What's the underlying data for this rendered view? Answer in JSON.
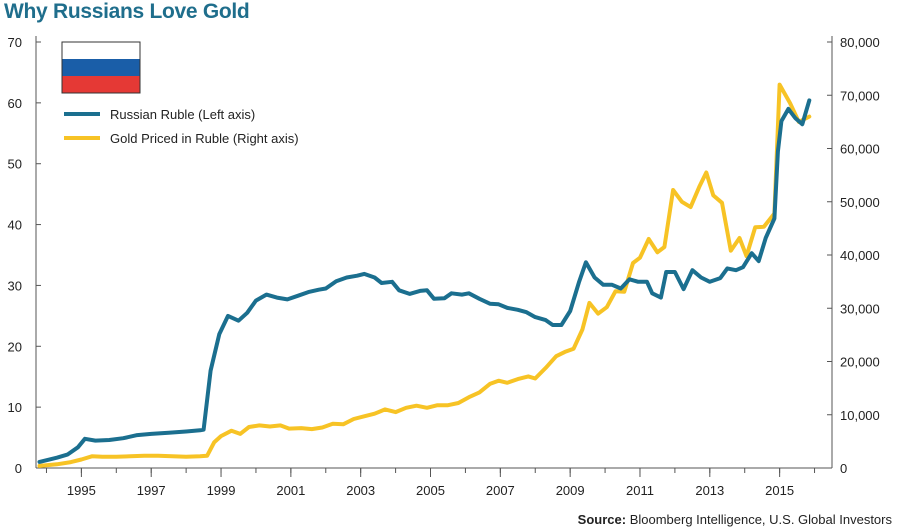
{
  "title": "Why Russians Love Gold",
  "source": {
    "label": "Source:",
    "text": "Bloomberg Intelligence, U.S. Global Investors"
  },
  "flag": {
    "name": "russian-flag",
    "stripes": [
      "#ffffff",
      "#1a5ea8",
      "#e53935"
    ]
  },
  "chart_data": {
    "type": "line",
    "title": "Why Russians Love Gold",
    "grid": false,
    "legend_position": "top-left",
    "x_range": [
      1993.7,
      2016.5
    ],
    "x_ticks": [
      1995,
      1997,
      1999,
      2001,
      2003,
      2005,
      2007,
      2009,
      2011,
      2013,
      2015
    ],
    "left_axis": {
      "range": [
        0,
        70
      ],
      "ticks": [
        0,
        10,
        20,
        30,
        40,
        50,
        60,
        70
      ]
    },
    "right_axis": {
      "range": [
        0,
        80000
      ],
      "ticks": [
        0,
        10000,
        20000,
        30000,
        40000,
        50000,
        60000,
        70000,
        80000
      ],
      "tick_labels": [
        "0",
        "10,000",
        "20,000",
        "30,000",
        "40,000",
        "50,000",
        "60,000",
        "70,000",
        "80,000"
      ]
    },
    "series": [
      {
        "name": "Russian Ruble (Left axis)",
        "axis": "left",
        "color": "#1b6f8f",
        "points": [
          [
            1993.8,
            1.0
          ],
          [
            1994.3,
            1.7
          ],
          [
            1994.6,
            2.2
          ],
          [
            1994.9,
            3.4
          ],
          [
            1995.1,
            4.8
          ],
          [
            1995.4,
            4.5
          ],
          [
            1995.8,
            4.6
          ],
          [
            1996.2,
            4.9
          ],
          [
            1996.6,
            5.4
          ],
          [
            1997.0,
            5.6
          ],
          [
            1997.5,
            5.8
          ],
          [
            1998.0,
            6.0
          ],
          [
            1998.4,
            6.2
          ],
          [
            1998.5,
            6.3
          ],
          [
            1998.7,
            16.0
          ],
          [
            1998.95,
            22.0
          ],
          [
            1999.2,
            25.0
          ],
          [
            1999.5,
            24.2
          ],
          [
            1999.75,
            25.5
          ],
          [
            2000.0,
            27.5
          ],
          [
            2000.3,
            28.5
          ],
          [
            2000.6,
            28.0
          ],
          [
            2000.9,
            27.7
          ],
          [
            2001.2,
            28.3
          ],
          [
            2001.5,
            28.9
          ],
          [
            2001.8,
            29.3
          ],
          [
            2002.0,
            29.5
          ],
          [
            2002.3,
            30.7
          ],
          [
            2002.6,
            31.3
          ],
          [
            2002.9,
            31.6
          ],
          [
            2003.1,
            31.9
          ],
          [
            2003.4,
            31.3
          ],
          [
            2003.6,
            30.4
          ],
          [
            2003.9,
            30.6
          ],
          [
            2004.1,
            29.2
          ],
          [
            2004.4,
            28.6
          ],
          [
            2004.7,
            29.1
          ],
          [
            2004.9,
            29.2
          ],
          [
            2005.1,
            27.8
          ],
          [
            2005.4,
            27.9
          ],
          [
            2005.6,
            28.7
          ],
          [
            2005.9,
            28.5
          ],
          [
            2006.1,
            28.7
          ],
          [
            2006.4,
            27.8
          ],
          [
            2006.7,
            27.0
          ],
          [
            2006.95,
            26.9
          ],
          [
            2007.2,
            26.3
          ],
          [
            2007.5,
            26.0
          ],
          [
            2007.75,
            25.6
          ],
          [
            2008.0,
            24.8
          ],
          [
            2008.3,
            24.3
          ],
          [
            2008.5,
            23.5
          ],
          [
            2008.75,
            23.5
          ],
          [
            2009.0,
            25.8
          ],
          [
            2009.25,
            30.5
          ],
          [
            2009.45,
            33.8
          ],
          [
            2009.7,
            31.3
          ],
          [
            2009.95,
            30.1
          ],
          [
            2010.2,
            30.1
          ],
          [
            2010.45,
            29.5
          ],
          [
            2010.7,
            31.0
          ],
          [
            2010.95,
            30.6
          ],
          [
            2011.2,
            30.6
          ],
          [
            2011.35,
            28.7
          ],
          [
            2011.6,
            28.0
          ],
          [
            2011.75,
            32.2
          ],
          [
            2012.0,
            32.2
          ],
          [
            2012.25,
            29.4
          ],
          [
            2012.5,
            32.5
          ],
          [
            2012.75,
            31.3
          ],
          [
            2013.0,
            30.6
          ],
          [
            2013.3,
            31.2
          ],
          [
            2013.5,
            32.8
          ],
          [
            2013.75,
            32.5
          ],
          [
            2013.95,
            33.0
          ],
          [
            2014.2,
            35.3
          ],
          [
            2014.4,
            34.0
          ],
          [
            2014.6,
            37.8
          ],
          [
            2014.85,
            41.0
          ],
          [
            2014.95,
            52.0
          ],
          [
            2015.05,
            57.0
          ],
          [
            2015.25,
            59.0
          ],
          [
            2015.45,
            57.5
          ],
          [
            2015.65,
            56.5
          ],
          [
            2015.85,
            60.4
          ]
        ]
      },
      {
        "name": "Gold Priced in Ruble (Right axis)",
        "axis": "right",
        "color": "#f7c325",
        "points": [
          [
            1993.8,
            400
          ],
          [
            1994.3,
            700
          ],
          [
            1994.7,
            1100
          ],
          [
            1995.0,
            1600
          ],
          [
            1995.3,
            2200
          ],
          [
            1995.6,
            2100
          ],
          [
            1996.0,
            2100
          ],
          [
            1996.4,
            2200
          ],
          [
            1996.8,
            2300
          ],
          [
            1997.2,
            2300
          ],
          [
            1997.6,
            2200
          ],
          [
            1998.0,
            2100
          ],
          [
            1998.4,
            2200
          ],
          [
            1998.6,
            2300
          ],
          [
            1998.8,
            4800
          ],
          [
            1999.0,
            6000
          ],
          [
            1999.3,
            7000
          ],
          [
            1999.55,
            6400
          ],
          [
            1999.8,
            7700
          ],
          [
            2000.1,
            8000
          ],
          [
            2000.4,
            7800
          ],
          [
            2000.7,
            8000
          ],
          [
            2000.95,
            7400
          ],
          [
            2001.3,
            7500
          ],
          [
            2001.6,
            7300
          ],
          [
            2001.9,
            7600
          ],
          [
            2002.2,
            8300
          ],
          [
            2002.5,
            8200
          ],
          [
            2002.8,
            9200
          ],
          [
            2003.1,
            9700
          ],
          [
            2003.4,
            10200
          ],
          [
            2003.7,
            11000
          ],
          [
            2004.0,
            10500
          ],
          [
            2004.3,
            11300
          ],
          [
            2004.6,
            11700
          ],
          [
            2004.9,
            11300
          ],
          [
            2005.2,
            11800
          ],
          [
            2005.5,
            11800
          ],
          [
            2005.8,
            12200
          ],
          [
            2006.1,
            13300
          ],
          [
            2006.4,
            14200
          ],
          [
            2006.7,
            15800
          ],
          [
            2006.95,
            16400
          ],
          [
            2007.2,
            16000
          ],
          [
            2007.5,
            16700
          ],
          [
            2007.8,
            17200
          ],
          [
            2008.0,
            16800
          ],
          [
            2008.3,
            18800
          ],
          [
            2008.6,
            21000
          ],
          [
            2008.85,
            21800
          ],
          [
            2009.1,
            22400
          ],
          [
            2009.35,
            26000
          ],
          [
            2009.55,
            31000
          ],
          [
            2009.8,
            29000
          ],
          [
            2010.05,
            30200
          ],
          [
            2010.3,
            33200
          ],
          [
            2010.55,
            33100
          ],
          [
            2010.8,
            38500
          ],
          [
            2011.0,
            39500
          ],
          [
            2011.25,
            43000
          ],
          [
            2011.5,
            40500
          ],
          [
            2011.7,
            41500
          ],
          [
            2011.95,
            52200
          ],
          [
            2012.2,
            50000
          ],
          [
            2012.45,
            49000
          ],
          [
            2012.7,
            52800
          ],
          [
            2012.9,
            55500
          ],
          [
            2013.1,
            51200
          ],
          [
            2013.35,
            49800
          ],
          [
            2013.6,
            40800
          ],
          [
            2013.85,
            43200
          ],
          [
            2014.05,
            39800
          ],
          [
            2014.3,
            45200
          ],
          [
            2014.55,
            45300
          ],
          [
            2014.85,
            47800
          ],
          [
            2015.0,
            72000
          ],
          [
            2015.3,
            68500
          ],
          [
            2015.55,
            65000
          ],
          [
            2015.85,
            66000
          ]
        ]
      }
    ]
  }
}
